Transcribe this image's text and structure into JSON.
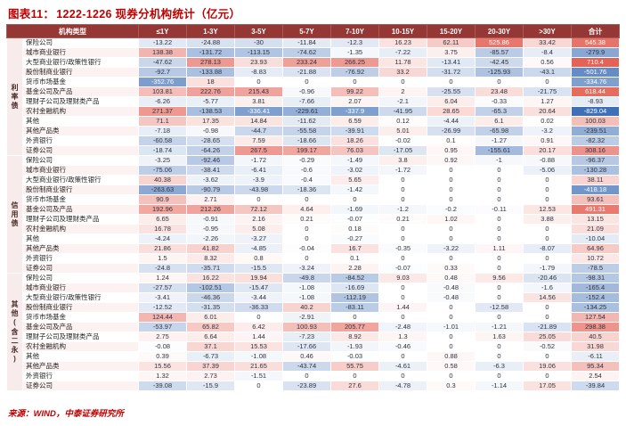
{
  "title": {
    "tag": "图表11：",
    "text": "1222-1226 现券分机构统计（亿元）"
  },
  "source": "来源：WIND，中泰证券研究所",
  "colors": {
    "accent_red": "#c00000",
    "header_bg": "#953735",
    "heat_positive": "#e2574a",
    "heat_negative": "#3f6fb7"
  },
  "chart_data": {
    "type": "table",
    "subtype": "diverging-heatmap",
    "title": "图表11：1222-1226 现券分机构统计（亿元）",
    "corner_header": "机构类型",
    "columns": [
      "≤1Y",
      "1-3Y",
      "3-5Y",
      "5-7Y",
      "7-10Y",
      "10-15Y",
      "15-20Y",
      "20-30Y",
      ">30Y",
      "合计"
    ],
    "heatmap": {
      "positive": "#e2574a",
      "negative": "#3f6fb7",
      "max_abs": 830
    },
    "groups": [
      {
        "name": "利率债",
        "rows": [
          {
            "label": "保险公司",
            "values": [
              -13.22,
              -24.88,
              -30,
              -11.84,
              -12.3,
              16.23,
              62.11,
              525.86,
              33.42,
              545.38
            ]
          },
          {
            "label": "城市商业银行",
            "values": [
              138.38,
              -131.72,
              -113.15,
              -74.62,
              -1.35,
              -7.22,
              3.75,
              -85.57,
              -8.4,
              -279.9
            ]
          },
          {
            "label": "大型商业银行/政策性银行",
            "values": [
              -47.62,
              278.13,
              23.93,
              233.24,
              266.25,
              11.78,
              -13.41,
              -42.45,
              0.56,
              710.4
            ]
          },
          {
            "label": "股份制商业银行",
            "values": [
              -92.7,
              -133.88,
              -8.83,
              -21.88,
              -76.92,
              33.2,
              -31.72,
              -125.93,
              -43.1,
              -501.76
            ]
          },
          {
            "label": "货币市场基金",
            "values": [
              -352.76,
              18,
              0,
              0,
              0,
              0,
              0,
              0,
              0,
              -334.76
            ]
          },
          {
            "label": "基金公司及产品",
            "values": [
              103.81,
              222.76,
              215.43,
              -0.96,
              99.22,
              2,
              -25.55,
              23.48,
              -21.75,
              618.44
            ]
          },
          {
            "label": "理财子公司及理财类产品",
            "values": [
              -6.26,
              -5.77,
              3.81,
              -7.66,
              2.07,
              -2.1,
              6.04,
              -0.33,
              1.27,
              -8.93
            ]
          },
          {
            "label": "农村金融机构",
            "values": [
              271.37,
              -138.53,
              -336.41,
              -229.61,
              -337.9,
              -41.95,
              28.65,
              -65.3,
              20.64,
              -829.04
            ]
          },
          {
            "label": "其他",
            "values": [
              71.1,
              17.35,
              14.84,
              -11.62,
              6.59,
              0.12,
              -4.44,
              6.1,
              0.02,
              100.03
            ]
          },
          {
            "label": "其他产品类",
            "values": [
              -7.18,
              -0.98,
              -44.7,
              -55.58,
              -39.91,
              5.01,
              -26.99,
              -65.98,
              -3.2,
              -239.51
            ]
          },
          {
            "label": "外资银行",
            "values": [
              -60.58,
              -28.65,
              7.59,
              -18.66,
              18.26,
              -0.02,
              0.1,
              -1.27,
              0.91,
              -82.32
            ]
          },
          {
            "label": "证券公司",
            "values": [
              -18.74,
              -64.26,
              267.5,
              199.17,
              76.03,
              -17.05,
              0.95,
              -155.61,
              20.17,
              308.16
            ]
          }
        ]
      },
      {
        "name": "信用债",
        "rows": [
          {
            "label": "保险公司",
            "values": [
              -3.25,
              -92.46,
              -1.72,
              -0.29,
              -1.49,
              3.8,
              0.92,
              -1,
              -0.88,
              -96.37
            ]
          },
          {
            "label": "城市商业银行",
            "values": [
              -75.06,
              -38.41,
              -6.41,
              -0.6,
              -3.02,
              -1.72,
              0,
              0,
              -5.06,
              -130.28
            ]
          },
          {
            "label": "大型商业银行/政策性银行",
            "values": [
              40.38,
              -3.62,
              -3.9,
              -0.4,
              5.65,
              0,
              0,
              0,
              0,
              38.11
            ]
          },
          {
            "label": "股份制商业银行",
            "values": [
              -263.63,
              -90.79,
              -43.98,
              -18.36,
              -1.42,
              0,
              0,
              0,
              0,
              -418.18
            ]
          },
          {
            "label": "货币市场基金",
            "values": [
              90.9,
              2.71,
              0,
              0,
              0,
              0,
              0,
              0,
              0,
              93.61
            ]
          },
          {
            "label": "基金公司及产品",
            "values": [
              192.96,
              212.26,
              72.12,
              4.64,
              -1.69,
              -1.2,
              -0.2,
              -0.11,
              12.53,
              491.31
            ]
          },
          {
            "label": "理财子公司及理财类产品",
            "values": [
              6.65,
              -0.91,
              2.16,
              0.21,
              -0.07,
              0.21,
              1.02,
              0,
              3.88,
              13.15
            ]
          },
          {
            "label": "农村金融机构",
            "values": [
              16.78,
              -0.95,
              5.08,
              0,
              0.18,
              0,
              0,
              0,
              0,
              21.09
            ]
          },
          {
            "label": "其他",
            "values": [
              -4.24,
              -2.26,
              -3.27,
              0,
              -0.27,
              0,
              0,
              0,
              0,
              -10.04
            ]
          },
          {
            "label": "其他产品类",
            "values": [
              21.86,
              41.82,
              -4.85,
              -0.04,
              16.7,
              -0.35,
              -3.22,
              1.11,
              -8.07,
              64.96
            ]
          },
          {
            "label": "外资银行",
            "values": [
              1.5,
              8.32,
              0.8,
              0,
              0.1,
              0,
              0,
              0,
              0,
              10.72
            ]
          },
          {
            "label": "证券公司",
            "values": [
              -24.8,
              -35.71,
              -15.5,
              -3.24,
              2.28,
              -0.07,
              0.33,
              0,
              -1.79,
              -78.5
            ]
          }
        ]
      },
      {
        "name": "其他(含二永)",
        "rows": [
          {
            "label": "保险公司",
            "values": [
              1.24,
              16.22,
              19.94,
              -49.8,
              -84.52,
              9.03,
              0.48,
              9.56,
              -20.46,
              -98.31
            ]
          },
          {
            "label": "城市商业银行",
            "values": [
              -27.57,
              -102.51,
              -15.47,
              -1.08,
              -16.69,
              0,
              -0.48,
              0,
              -1.6,
              -165.4
            ]
          },
          {
            "label": "大型商业银行/政策性银行",
            "values": [
              -3.41,
              -46.36,
              -3.44,
              -1.08,
              -112.19,
              0,
              -0.48,
              0,
              14.56,
              -152.4
            ]
          },
          {
            "label": "股份制商业银行",
            "values": [
              -12.52,
              -31.35,
              -36.33,
              40.2,
              -83.11,
              1.44,
              0,
              -12.58,
              0,
              -134.25
            ]
          },
          {
            "label": "货币市场基金",
            "values": [
              124.44,
              6.01,
              0,
              -2.91,
              0,
              0,
              0,
              0,
              0,
              127.54
            ]
          },
          {
            "label": "基金公司及产品",
            "values": [
              -53.97,
              65.82,
              6.42,
              100.93,
              205.77,
              -2.48,
              -1.01,
              -1.21,
              -21.89,
              298.38
            ]
          },
          {
            "label": "理财子公司及理财类产品",
            "values": [
              2.75,
              6.64,
              1.44,
              -7.23,
              8.92,
              1.3,
              0,
              1.63,
              25.05,
              40.5
            ]
          },
          {
            "label": "农村金融机构",
            "values": [
              -0.08,
              37.1,
              15.53,
              -17.66,
              -1.93,
              -0.46,
              0,
              0,
              -0.52,
              31.98
            ]
          },
          {
            "label": "其他",
            "values": [
              0.39,
              -6.73,
              -1.08,
              0.46,
              -0.03,
              0,
              0.88,
              0,
              0,
              -6.11
            ]
          },
          {
            "label": "其他产品类",
            "values": [
              15.56,
              37.39,
              21.65,
              -43.74,
              55.75,
              -4.61,
              0.58,
              -6.3,
              19.06,
              95.34
            ]
          },
          {
            "label": "外资银行",
            "values": [
              1.32,
              2.73,
              -1.51,
              0,
              0,
              0,
              0,
              0,
              0,
              2.54
            ]
          },
          {
            "label": "证券公司",
            "values": [
              -39.08,
              -15.9,
              0,
              -23.89,
              27.6,
              -4.78,
              0.3,
              -1.14,
              17.05,
              -39.84
            ]
          }
        ]
      }
    ]
  }
}
